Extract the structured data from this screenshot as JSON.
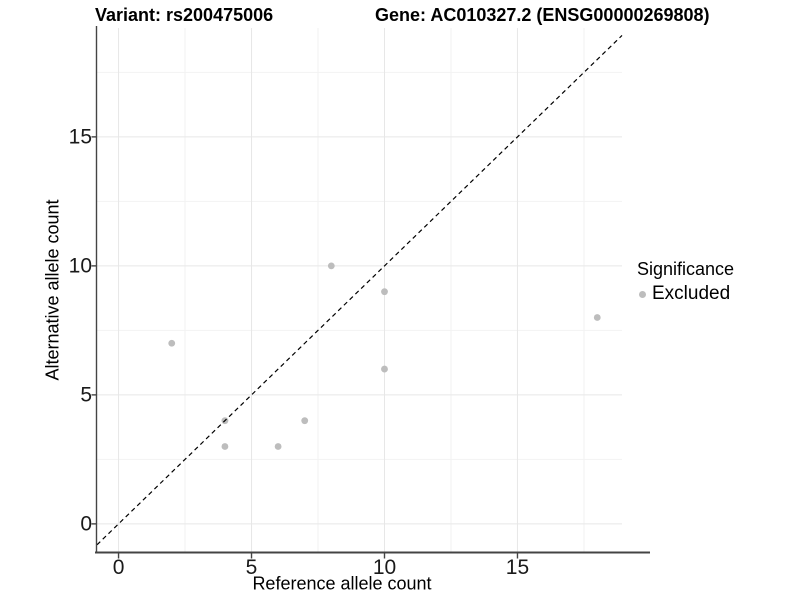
{
  "header": {
    "variant_title": "Variant: rs200475006",
    "gene_title": "Gene: AC010327.2 (ENSG00000269808)"
  },
  "chart_data": {
    "type": "scatter",
    "xlabel": "Reference allele count",
    "ylabel": "Alternative allele count",
    "xticks": [
      0,
      5,
      10,
      15
    ],
    "yticks": [
      0,
      5,
      10,
      15
    ],
    "xticks_minor": [
      2.5,
      7.5,
      12.5,
      17.5
    ],
    "yticks_minor": [
      2.5,
      7.5,
      12.5,
      17.5
    ],
    "xlim": [
      -0.81,
      18.93
    ],
    "ylim": [
      -1.09,
      19.22
    ],
    "grid": true,
    "series": [
      {
        "name": "Excluded",
        "color": "#bdbdbd",
        "points": [
          {
            "x": 2,
            "y": 7
          },
          {
            "x": 4,
            "y": 4
          },
          {
            "x": 4,
            "y": 3
          },
          {
            "x": 6,
            "y": 3
          },
          {
            "x": 7,
            "y": 4
          },
          {
            "x": 8,
            "y": 10
          },
          {
            "x": 10,
            "y": 9
          },
          {
            "x": 10,
            "y": 6
          },
          {
            "x": 18,
            "y": 8
          }
        ]
      }
    ],
    "reference_line": {
      "type": "identity",
      "equation": "y = x",
      "style": "dashed",
      "color": "#000000"
    },
    "legend": {
      "position": "right",
      "title": "Significance",
      "items": [
        {
          "label": "Excluded",
          "color": "#bdbdbd"
        }
      ]
    },
    "style": {
      "point_color": "#bdbdbd",
      "grid_major_color": "#e7e7e7",
      "grid_minor_color": "#f2f2f2",
      "axis_color": "#444444",
      "background": "#ffffff"
    }
  }
}
